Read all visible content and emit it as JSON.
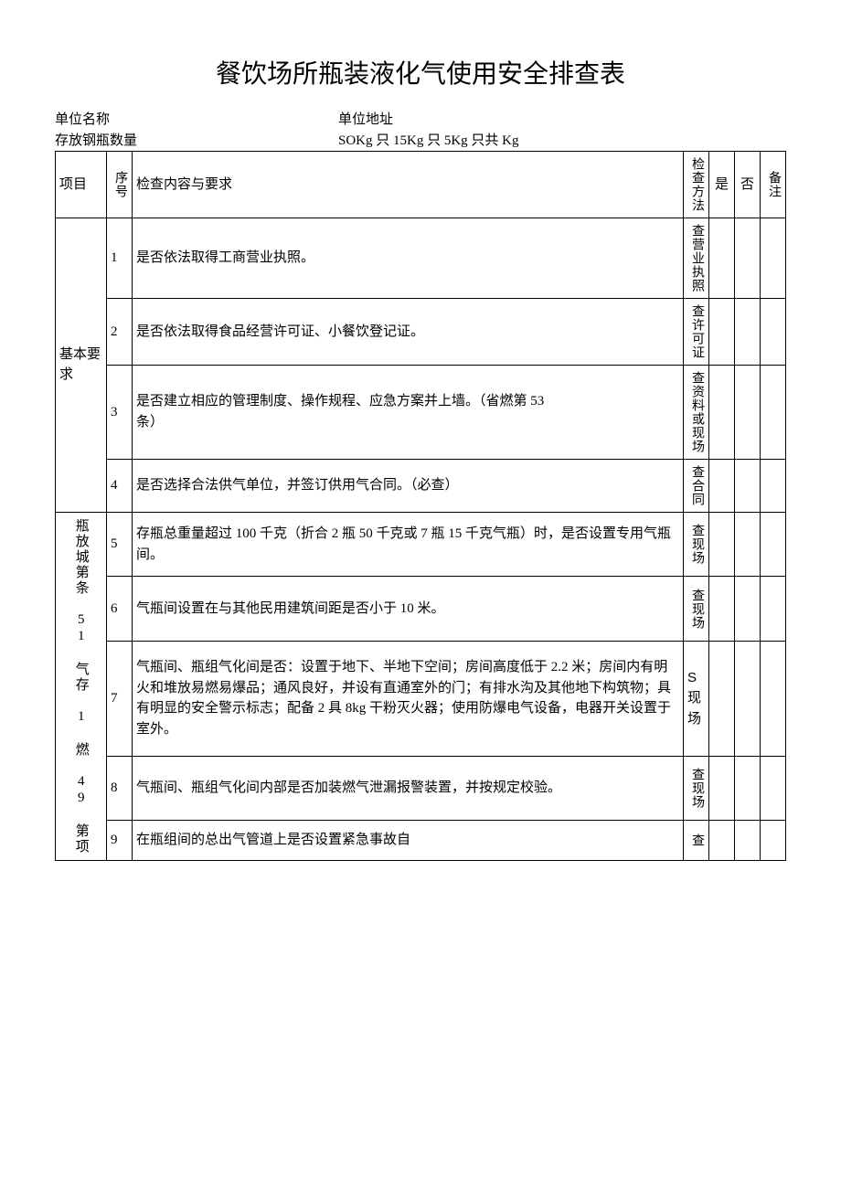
{
  "title": "餐饮场所瓶装液化气使用安全排查表",
  "meta": {
    "unit_name_label": "单位名称",
    "unit_addr_label": "单位地址",
    "cylinder_count_label": "存放钢瓶数量",
    "cylinder_spec": "SOKg 只 15Kg 只 5Kg 只共 Kg"
  },
  "headers": {
    "project": "项目",
    "seq": "序号",
    "content": "检查内容与要求",
    "method": "检查方法",
    "yes": "是",
    "no": "否",
    "note": "备注"
  },
  "groups": [
    {
      "name": "基本要求",
      "rows": [
        {
          "seq": "1",
          "content": "是否依法取得工商营业执照。",
          "method": "查营业执照"
        },
        {
          "seq": "2",
          "content": "是否依法取得食品经营许可证、小餐饮登记证。",
          "method": "查许可证"
        },
        {
          "seq": "3",
          "content": "是否建立相应的管理制度、操作规程、应急方案并上墙。（省燃第 53\n条）",
          "method": "查资料或现场"
        },
        {
          "seq": "4",
          "content": "是否选择合法供气单位，并签订供用气合同。（必查）",
          "method": "查合同"
        }
      ]
    },
    {
      "name": "瓶放城第条 51 气存 1 燃 49 第项",
      "rows": [
        {
          "seq": "5",
          "content": "存瓶总重量超过 100 千克（折合 2 瓶 50 千克或 7 瓶 15 千克气瓶）时，是否设置专用气瓶间。",
          "method": "查现场"
        },
        {
          "seq": "6",
          "content": "气瓶间设置在与其他民用建筑间距是否小于 10 米。",
          "method": "查现场"
        },
        {
          "seq": "7",
          "content": "气瓶间、瓶组气化间是否：设置于地下、半地下空间；房间高度低于 2.2 米；房间内有明火和堆放易燃易爆品；通风良好，并设有直通室外的门；有排水沟及其他地下构筑物；具有明显的安全警示标志；配备 2 具 8kg 干粉灭火器；使用防爆电气设备，电器开关设置于室外。",
          "method": "S 现场",
          "method_sans_first": true
        },
        {
          "seq": "8",
          "content": "气瓶间、瓶组气化间内部是否加装燃气泄漏报警装置，并按规定校验。",
          "method": "查现场"
        },
        {
          "seq": "9",
          "content": "在瓶组间的总出气管道上是否设置紧急事故自",
          "method": "查"
        }
      ]
    }
  ]
}
